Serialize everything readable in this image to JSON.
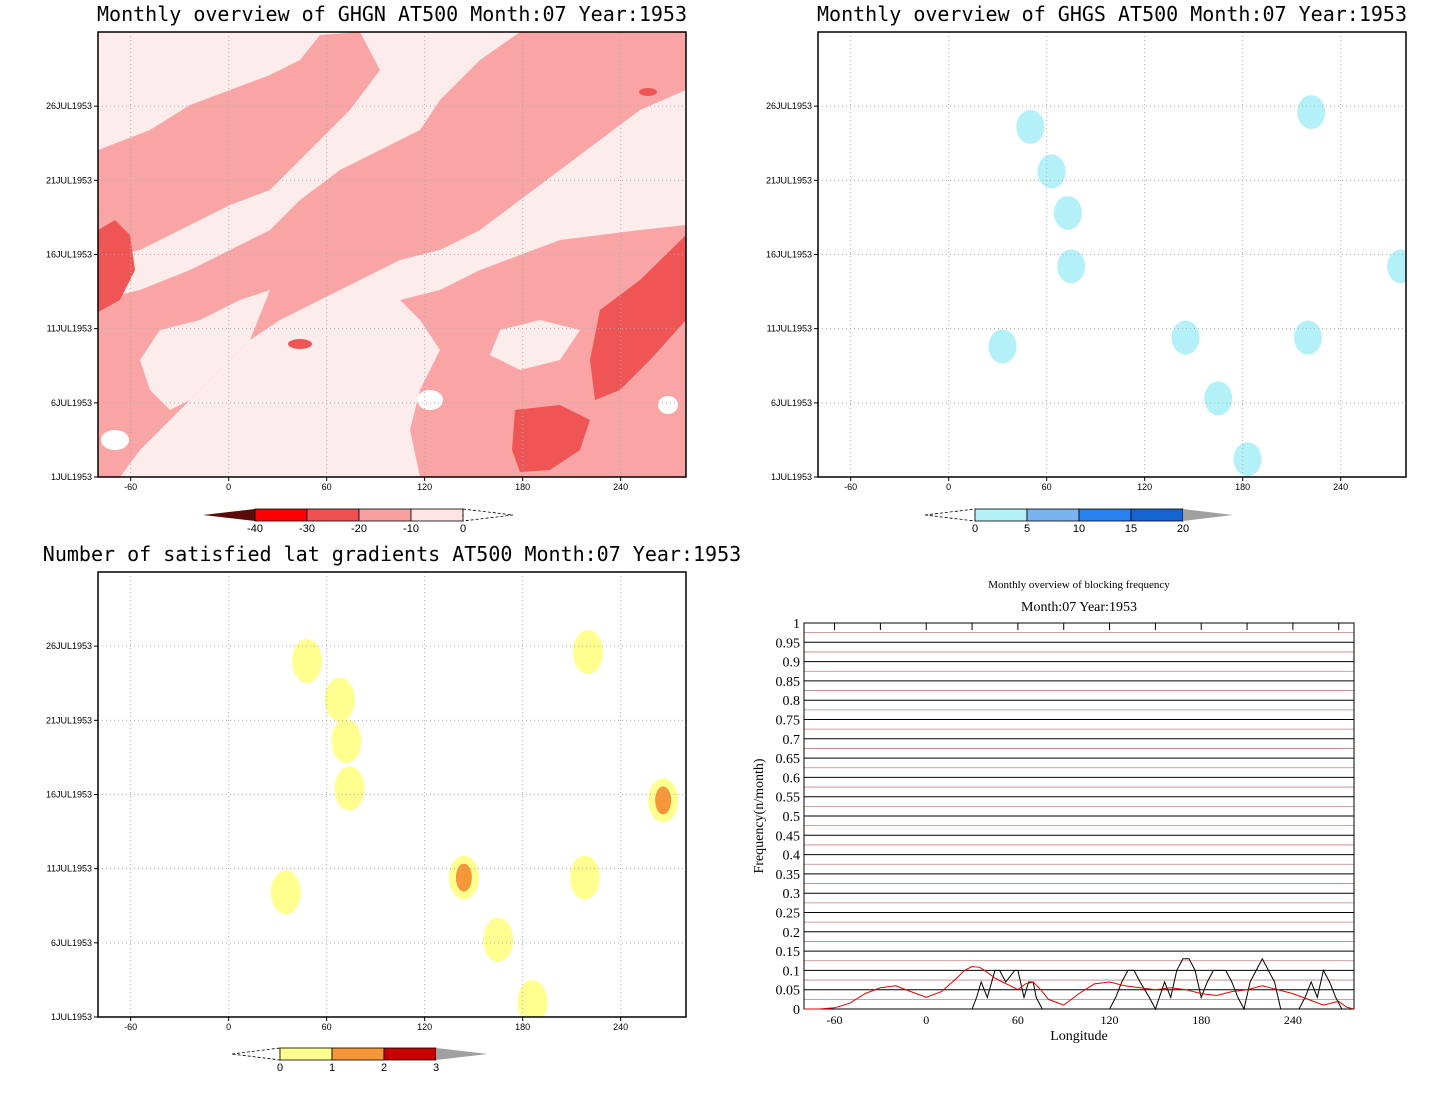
{
  "chart_data": [
    {
      "type": "heatmap",
      "title": "Monthly overview of GHGN AT500 Month:07 Year:1953",
      "x_ticks": [
        -60,
        0,
        60,
        120,
        180,
        240
      ],
      "y_ticks": [
        "26JUL1953",
        "21JUL1953",
        "16JUL1953",
        "11JUL1953",
        "6JUL1953",
        "1JUL1953"
      ],
      "xlim": [
        -80,
        280
      ],
      "colorbar": {
        "labels": [
          "-40",
          "-30",
          "-20",
          "-10",
          "0"
        ],
        "colors": [
          "#5a0a0a",
          "#ff0000",
          "#f05050",
          "#f8a0a0",
          "#fde4e4"
        ]
      },
      "fill_colors": {
        "low": "#fdecec",
        "mid": "#f9a5a5",
        "high": "#f05555",
        "white": "#ffffff"
      }
    },
    {
      "type": "heatmap",
      "title": "Monthly overview of GHGS AT500 Month:07 Year:1953",
      "x_ticks": [
        -60,
        0,
        60,
        120,
        180,
        240
      ],
      "y_ticks": [
        "26JUL1953",
        "21JUL1953",
        "16JUL1953",
        "11JUL1953",
        "6JUL1953",
        "1JUL1953"
      ],
      "xlim": [
        -80,
        280
      ],
      "colorbar": {
        "labels": [
          "0",
          "5",
          "10",
          "15",
          "20"
        ],
        "colors": [
          "#b4f0f8",
          "#78b4f0",
          "#2882f0",
          "#1464d2",
          "#a0a0a0"
        ]
      },
      "blobs": [
        {
          "lon": 50,
          "day": 24.6
        },
        {
          "lon": 63,
          "day": 21.6
        },
        {
          "lon": 73,
          "day": 18.8
        },
        {
          "lon": 75,
          "day": 15.2
        },
        {
          "lon": 33,
          "day": 9.8
        },
        {
          "lon": 145,
          "day": 10.4
        },
        {
          "lon": 165,
          "day": 6.3
        },
        {
          "lon": 183,
          "day": 2.2
        },
        {
          "lon": 222,
          "day": 25.6
        },
        {
          "lon": 277,
          "day": 15.2
        },
        {
          "lon": 220,
          "day": 10.4
        }
      ]
    },
    {
      "type": "heatmap",
      "title": "Number of satisfied lat gradients AT500 Month:07 Year:1953",
      "x_ticks": [
        -60,
        0,
        60,
        120,
        180,
        240
      ],
      "y_ticks": [
        "26JUL1953",
        "21JUL1953",
        "16JUL1953",
        "11JUL1953",
        "6JUL1953",
        "1JUL1953"
      ],
      "xlim": [
        -80,
        280
      ],
      "colorbar": {
        "labels": [
          "0",
          "1",
          "2",
          "3"
        ],
        "colors": [
          "#ffff90",
          "#f59638",
          "#c80000",
          "#a0a0a0"
        ]
      },
      "blobs": [
        {
          "lon": 48,
          "day": 25.0,
          "level": 1
        },
        {
          "lon": 68,
          "day": 22.4,
          "level": 1
        },
        {
          "lon": 72,
          "day": 19.6,
          "level": 1
        },
        {
          "lon": 74,
          "day": 16.4,
          "level": 1
        },
        {
          "lon": 35,
          "day": 9.4,
          "level": 1
        },
        {
          "lon": 144,
          "day": 10.4,
          "level": 2
        },
        {
          "lon": 165,
          "day": 6.2,
          "level": 1
        },
        {
          "lon": 186,
          "day": 2.0,
          "level": 1
        },
        {
          "lon": 220,
          "day": 25.6,
          "level": 1
        },
        {
          "lon": 218,
          "day": 10.4,
          "level": 1
        },
        {
          "lon": 266,
          "day": 15.6,
          "level": 2
        }
      ]
    },
    {
      "type": "line",
      "title": "Monthly overview of blocking frequency",
      "subtitle": "Month:07 Year:1953",
      "xlabel": "Longitude",
      "ylabel": "Frequency(n/month)",
      "xlim": [
        -80,
        280
      ],
      "ylim": [
        0,
        1
      ],
      "x_ticks": [
        -60,
        0,
        60,
        120,
        180,
        240
      ],
      "y_ticks": [
        0,
        0.05,
        0.1,
        0.15,
        0.2,
        0.25,
        0.3,
        0.35,
        0.4,
        0.45,
        0.5,
        0.55,
        0.6,
        0.65,
        0.7,
        0.75,
        0.8,
        0.85,
        0.9,
        0.95,
        1
      ],
      "y_tick_labels": [
        "0",
        "0.05",
        "0.1",
        "0.15",
        "0.2",
        "0.25",
        "0.3",
        "0.35",
        "0.4",
        "0.45",
        "0.5",
        "0.55",
        "0.6",
        "0.65",
        "0.7",
        "0.75",
        "0.8",
        "0.85",
        "0.9",
        "0.95",
        "1"
      ],
      "series": [
        {
          "color": "#000000",
          "x": [
            -80,
            30,
            33,
            36,
            40,
            45,
            48,
            52,
            58,
            60,
            64,
            67,
            70,
            72,
            76,
            80,
            120,
            124,
            128,
            132,
            136,
            140,
            146,
            150,
            156,
            160,
            164,
            168,
            172,
            176,
            180,
            184,
            188,
            192,
            196,
            200,
            204,
            208,
            212,
            216,
            220,
            224,
            228,
            232,
            240,
            244,
            248,
            252,
            256,
            260,
            264,
            268,
            272,
            280
          ],
          "y": [
            0,
            0,
            0.03,
            0.07,
            0.03,
            0.1,
            0.1,
            0.07,
            0.1,
            0.1,
            0.03,
            0.07,
            0.07,
            0.03,
            0,
            0,
            0,
            0.03,
            0.07,
            0.1,
            0.1,
            0.07,
            0.03,
            0,
            0.07,
            0.03,
            0.1,
            0.13,
            0.13,
            0.1,
            0.03,
            0.07,
            0.1,
            0.1,
            0.1,
            0.07,
            0.03,
            0,
            0.07,
            0.1,
            0.13,
            0.1,
            0.07,
            0,
            0,
            0,
            0.03,
            0.07,
            0.03,
            0.1,
            0.07,
            0.03,
            0,
            0
          ]
        },
        {
          "color": "#e00000",
          "x": [
            -80,
            -70,
            -60,
            -50,
            -40,
            -30,
            -20,
            -10,
            0,
            10,
            20,
            25,
            30,
            35,
            40,
            45,
            50,
            55,
            60,
            65,
            70,
            75,
            80,
            90,
            100,
            110,
            120,
            130,
            140,
            150,
            160,
            170,
            180,
            190,
            200,
            210,
            220,
            230,
            240,
            250,
            260,
            270,
            275,
            280
          ],
          "y": [
            0,
            0,
            0.003,
            0.015,
            0.04,
            0.055,
            0.06,
            0.045,
            0.03,
            0.045,
            0.08,
            0.1,
            0.11,
            0.108,
            0.095,
            0.08,
            0.07,
            0.06,
            0.05,
            0.065,
            0.07,
            0.05,
            0.025,
            0.01,
            0.04,
            0.065,
            0.07,
            0.06,
            0.055,
            0.05,
            0.055,
            0.05,
            0.04,
            0.035,
            0.045,
            0.05,
            0.06,
            0.05,
            0.04,
            0.025,
            0.01,
            0.02,
            0.005,
            0
          ]
        }
      ]
    }
  ]
}
